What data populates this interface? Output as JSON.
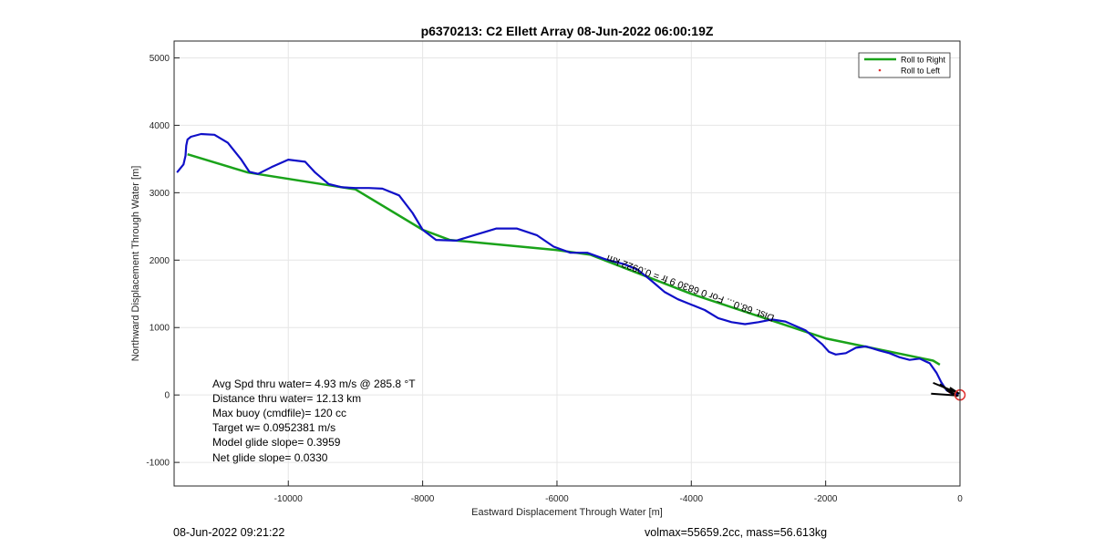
{
  "chart_data": {
    "type": "line",
    "title": "p6370213: C2 Ellett Array 08-Jun-2022 06:00:19Z",
    "xlabel": "Eastward Displacement Through Water [m]",
    "ylabel": "Northward Displacement Through Water [m]",
    "xlim": [
      -11700,
      0
    ],
    "ylim": [
      -1350,
      5250
    ],
    "x_ticks": [
      -10000,
      -8000,
      -6000,
      -4000,
      -2000,
      0
    ],
    "y_ticks": [
      -1000,
      0,
      1000,
      2000,
      3000,
      4000,
      5000
    ],
    "x_tick_labels": [
      "-10000",
      "-8000",
      "-6000",
      "-4000",
      "-2000",
      "0"
    ],
    "y_tick_labels": [
      "-1000",
      "0",
      "1000",
      "2000",
      "3000",
      "4000",
      "5000"
    ],
    "grid": true,
    "legend_position": "top-right",
    "series": [
      {
        "name": "Roll to Right",
        "color": "#1aa31a",
        "x": [
          -11500,
          -10600,
          -9000,
          -8000,
          -7600,
          -6000,
          -5500,
          -4000,
          -2000,
          -400,
          -300
        ],
        "y": [
          3570,
          3300,
          3050,
          2450,
          2300,
          2150,
          2080,
          1500,
          840,
          510,
          450
        ]
      },
      {
        "name": "Roll to Left",
        "color": "#e0302f",
        "x": [
          -150
        ],
        "y": [
          40
        ]
      },
      {
        "name": "",
        "color": "#1010c8",
        "x": [
          -11650,
          -11560,
          -11530,
          -11520,
          -11500,
          -11450,
          -11300,
          -11100,
          -10900,
          -10700,
          -10580,
          -10450,
          -10250,
          -10000,
          -9750,
          -9600,
          -9400,
          -9200,
          -9000,
          -8800,
          -8600,
          -8350,
          -8150,
          -8000,
          -7800,
          -7500,
          -7200,
          -6900,
          -6600,
          -6300,
          -6050,
          -5800,
          -5550,
          -5300,
          -5200,
          -5000,
          -4800,
          -4600,
          -4400,
          -4200,
          -4000,
          -3800,
          -3600,
          -3400,
          -3200,
          -3000,
          -2800,
          -2600,
          -2300,
          -2050,
          -1950,
          -1850,
          -1700,
          -1550,
          -1400,
          -1200,
          -1050,
          -900,
          -750,
          -600,
          -450,
          -350,
          -280,
          -200,
          -120,
          -40
        ],
        "y": [
          3310,
          3420,
          3550,
          3700,
          3790,
          3830,
          3870,
          3860,
          3740,
          3490,
          3310,
          3280,
          3380,
          3490,
          3460,
          3300,
          3130,
          3080,
          3070,
          3070,
          3060,
          2960,
          2700,
          2450,
          2300,
          2290,
          2380,
          2470,
          2470,
          2370,
          2200,
          2110,
          2110,
          2020,
          1990,
          1940,
          1860,
          1700,
          1530,
          1420,
          1340,
          1260,
          1140,
          1080,
          1050,
          1080,
          1120,
          1090,
          960,
          750,
          640,
          600,
          620,
          700,
          720,
          660,
          620,
          560,
          520,
          540,
          470,
          330,
          190,
          70,
          20,
          10
        ]
      }
    ],
    "annotations": {
      "curve_label": "Dist. 68.0... For 0 6830 9 fr = 0.0922 km",
      "curve_label_glyphs": "Dist. 68.0... For 0 6830 9 fr = 0.0922 km",
      "stats": [
        "Avg Spd thru water=  4.93 m/s @ 285.8 °T",
        "Distance thru water= 12.13 km",
        "Max buoy (cmdfile)= 120 cc",
        "Target w= 0.0952381 m/s",
        "Model glide slope= 0.3959",
        "Net glide slope= 0.0330"
      ]
    }
  },
  "footer": {
    "timestamp": "08-Jun-2022 09:21:22",
    "vol_mass": "volmax=55659.2cc, mass=56.613kg"
  }
}
